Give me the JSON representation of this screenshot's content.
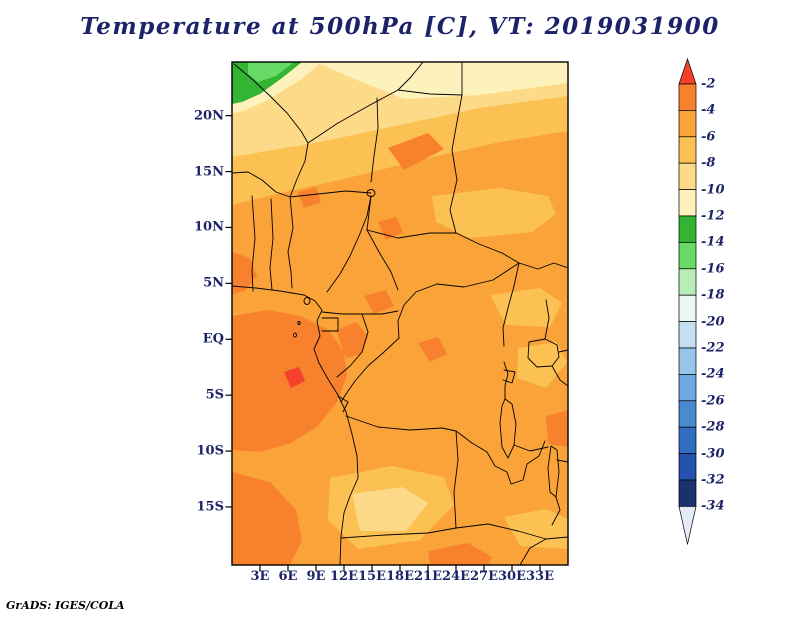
{
  "title": "Temperature at 500hPa [C], VT: 2019031900",
  "credit": "GrADS: IGES/COLA",
  "style": {
    "text_color": "#1c2368",
    "border_color": "#000000",
    "background": "#ffffff"
  },
  "chart_data": {
    "type": "heatmap",
    "title": "Temperature at 500hPa [C], VT: 2019031900",
    "variable": "Temperature",
    "level": "500hPa",
    "units": "C",
    "valid_time": "2019031900",
    "x_axis": {
      "range_lon": [
        0,
        36
      ],
      "ticks": [
        {
          "label": "3E",
          "lon": 3
        },
        {
          "label": "6E",
          "lon": 6
        },
        {
          "label": "9E",
          "lon": 9
        },
        {
          "label": "12E",
          "lon": 12
        },
        {
          "label": "15E",
          "lon": 15
        },
        {
          "label": "18E",
          "lon": 18
        },
        {
          "label": "21E",
          "lon": 21
        },
        {
          "label": "24E",
          "lon": 24
        },
        {
          "label": "27E",
          "lon": 27
        },
        {
          "label": "30E",
          "lon": 30
        },
        {
          "label": "33E",
          "lon": 33
        }
      ]
    },
    "y_axis": {
      "range_lat": [
        -20.4,
        24.8
      ],
      "ticks": [
        {
          "label": "20N",
          "lat": 20
        },
        {
          "label": "15N",
          "lat": 15
        },
        {
          "label": "10N",
          "lat": 10
        },
        {
          "label": "5N",
          "lat": 5
        },
        {
          "label": "EQ",
          "lat": 0
        },
        {
          "label": "5S",
          "lat": -5
        },
        {
          "label": "10S",
          "lat": -10
        },
        {
          "label": "15S",
          "lat": -15
        }
      ]
    },
    "colorbar": {
      "orientation": "vertical",
      "tick_labels": [
        "-2",
        "-4",
        "-6",
        "-8",
        "-10",
        "-12",
        "-14",
        "-16",
        "-18",
        "-20",
        "-22",
        "-24",
        "-26",
        "-28",
        "-30",
        "-32",
        "-34"
      ],
      "colors": [
        "#f5402e",
        "#f8812d",
        "#faa339",
        "#fcc153",
        "#fdda87",
        "#fef2bc",
        "#33b533",
        "#67da67",
        "#b8edb8",
        "#eaf7f5",
        "#c4def2",
        "#98c4e9",
        "#6da8de",
        "#4a8ad0",
        "#326dc1",
        "#2353ae",
        "#1a3170",
        "#e5eaf8"
      ]
    },
    "field_regions": [
      {
        "area": "most of the domain",
        "value_range_c": "-4 to -6"
      },
      {
        "area": "west coast, Gabon/Congo/Angola and southwest corner",
        "value_range_c": "-2 to -4"
      },
      {
        "area": "northern band 13N-20N",
        "value_range_c": "-6 to -8"
      },
      {
        "area": "far north band 20N-25N",
        "value_range_c": "-8 to -12"
      },
      {
        "area": "northwest corner (Algerian Sahara)",
        "value_range_c": "-12 to -16"
      },
      {
        "area": "scattered patches over Zambia/Angola border and East Africa",
        "value_range_c": "-6 to -10"
      }
    ]
  }
}
